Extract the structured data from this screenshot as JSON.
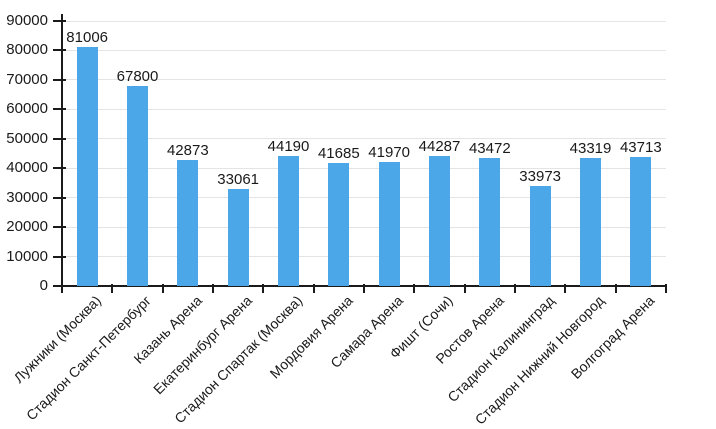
{
  "chart_data": {
    "type": "bar",
    "categories": [
      "Лужники (Москва)",
      "Стадион Санкт-Петербург",
      "Казань Арена",
      "Екатеринбург Арена",
      "Стадион Спартак (Москва)",
      "Мордовия Арена",
      "Самара Арена",
      "Фишт (Сочи)",
      "Ростов Арена",
      "Стадион Калининград",
      "Стадион Нижний Новгород",
      "Волгоград Арена"
    ],
    "values": [
      81006,
      67800,
      42873,
      33061,
      44190,
      41685,
      41970,
      44287,
      43472,
      33973,
      43319,
      43713
    ],
    "value_labels": [
      "81006",
      "67800",
      "42873",
      "33061",
      "44190",
      "41685",
      "41970",
      "44287",
      "43472",
      "33973",
      "43319",
      "43713"
    ],
    "ylim": [
      0,
      90000
    ],
    "yticks": [
      0,
      10000,
      20000,
      30000,
      40000,
      50000,
      60000,
      70000,
      80000,
      90000
    ],
    "ytick_labels": [
      "0",
      "10000",
      "20000",
      "30000",
      "40000",
      "50000",
      "60000",
      "70000",
      "80000",
      "90000"
    ],
    "grid": "horizontal",
    "legend_position": "none",
    "x_label_rotation_deg": -45,
    "bar_color": "#4ba7e8",
    "grid_color": "#e4e4e4",
    "axis_color": "#1a1a1a",
    "text_color": "#1a1a1a",
    "background_color": "#ffffff"
  }
}
